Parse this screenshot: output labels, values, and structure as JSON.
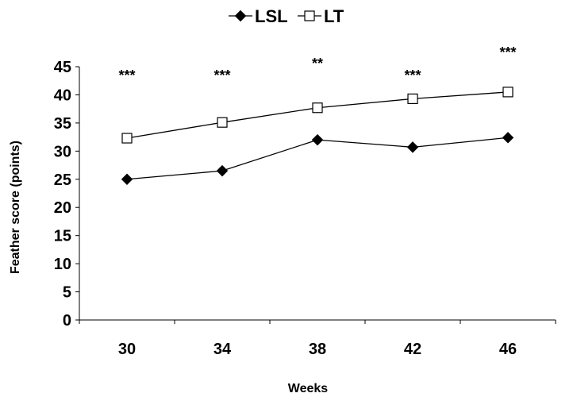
{
  "chart_data": {
    "type": "line",
    "xlabel": "Weeks",
    "ylabel": "Feather score (points)",
    "categories": [
      "30",
      "34",
      "38",
      "42",
      "46"
    ],
    "ylim": [
      0,
      45
    ],
    "yticks": [
      0,
      5,
      10,
      15,
      20,
      25,
      30,
      35,
      40,
      45
    ],
    "grid": false,
    "legend_position": "top-center",
    "series": [
      {
        "name": "LSL",
        "marker": "filled-diamond",
        "color": "#000000",
        "values": [
          25.0,
          26.5,
          32.0,
          30.7,
          32.4
        ]
      },
      {
        "name": "LT",
        "marker": "open-square",
        "color": "#000000",
        "values": [
          32.3,
          35.1,
          37.7,
          39.3,
          40.5
        ]
      }
    ],
    "annotations": [
      "***",
      "***",
      "**",
      "***",
      "***"
    ]
  }
}
